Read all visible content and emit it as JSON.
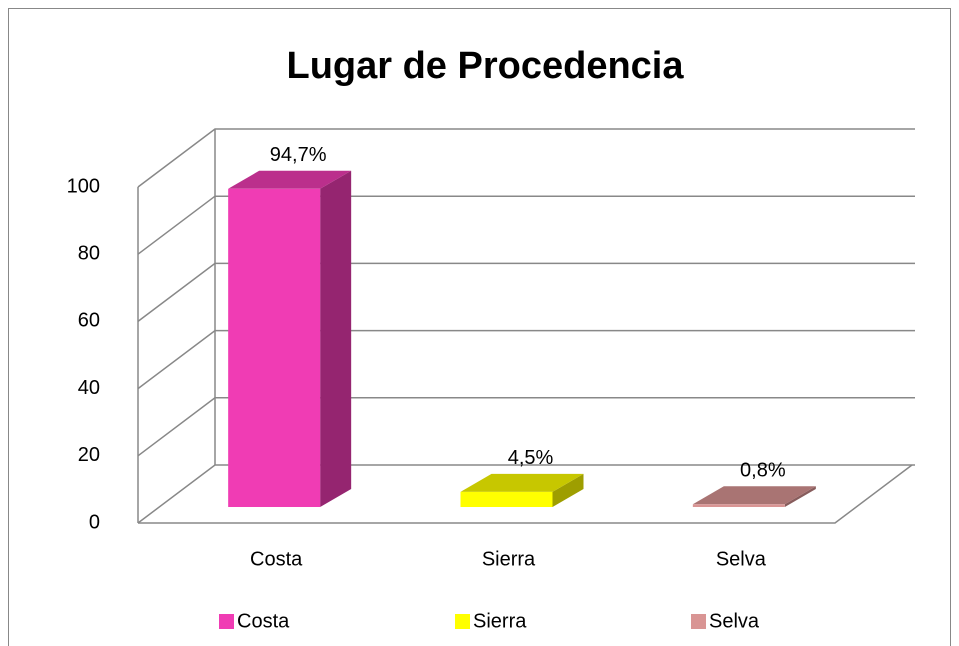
{
  "chart_data": {
    "type": "bar3d",
    "title": "Lugar de Procedencia",
    "categories": [
      "Costa",
      "Sierra",
      "Selva"
    ],
    "values": [
      94.7,
      4.5,
      0.8
    ],
    "value_labels": [
      "94,7%",
      "4,5%",
      "0,8%"
    ],
    "colors": [
      "#f03cb4",
      "#ffff00",
      "#d99594"
    ],
    "ylim": [
      0,
      100
    ],
    "yticks": [
      0,
      20,
      40,
      60,
      80,
      100
    ],
    "grid": true,
    "legend": "bottom"
  }
}
